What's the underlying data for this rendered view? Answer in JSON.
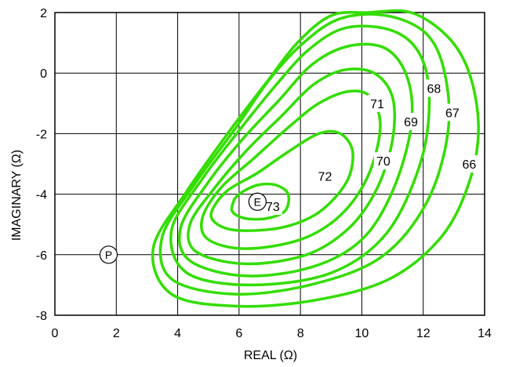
{
  "chart_data": {
    "type": "contour",
    "xlabel": "REAL (Ω)",
    "ylabel": "IMAGINARY (Ω)",
    "xlim": [
      0,
      14
    ],
    "ylim": [
      -8,
      2
    ],
    "x_ticks": [
      "0",
      "2",
      "4",
      "6",
      "8",
      "10",
      "12",
      "14"
    ],
    "y_ticks": [
      "2",
      "0",
      "-2",
      "-4",
      "-6",
      "-8"
    ],
    "grid": true,
    "line_color": "#33dd00",
    "contours": [
      {
        "label": "73",
        "label_at": [
          7.1,
          -4.4
        ],
        "points": [
          [
            5.8,
            -4.3
          ],
          [
            6.0,
            -4.0
          ],
          [
            6.6,
            -3.7
          ],
          [
            7.2,
            -3.7
          ],
          [
            7.6,
            -4.0
          ],
          [
            7.5,
            -4.55
          ],
          [
            6.9,
            -4.8
          ],
          [
            6.2,
            -4.8
          ],
          [
            5.8,
            -4.6
          ],
          [
            5.8,
            -4.3
          ]
        ]
      },
      {
        "label": "72",
        "label_at": [
          8.8,
          -3.4
        ],
        "points": [
          [
            5.1,
            -4.6
          ],
          [
            5.6,
            -3.9
          ],
          [
            6.6,
            -3.3
          ],
          [
            7.6,
            -2.6
          ],
          [
            8.6,
            -2.0
          ],
          [
            9.3,
            -2.0
          ],
          [
            9.7,
            -2.6
          ],
          [
            9.5,
            -3.6
          ],
          [
            8.6,
            -4.6
          ],
          [
            7.4,
            -5.1
          ],
          [
            6.0,
            -5.2
          ],
          [
            5.3,
            -5.0
          ],
          [
            5.1,
            -4.6
          ]
        ]
      },
      {
        "label": "71",
        "label_at": [
          10.5,
          -1.0
        ],
        "points": [
          [
            4.8,
            -4.8
          ],
          [
            5.4,
            -3.8
          ],
          [
            6.5,
            -2.8
          ],
          [
            7.6,
            -1.8
          ],
          [
            8.6,
            -1.0
          ],
          [
            9.6,
            -0.6
          ],
          [
            10.3,
            -0.8
          ],
          [
            10.6,
            -1.8
          ],
          [
            10.2,
            -3.4
          ],
          [
            9.3,
            -4.7
          ],
          [
            8.0,
            -5.5
          ],
          [
            6.2,
            -5.8
          ],
          [
            5.0,
            -5.5
          ],
          [
            4.8,
            -4.8
          ]
        ]
      },
      {
        "label": "70",
        "label_at": [
          10.7,
          -2.9
        ],
        "points": [
          [
            4.4,
            -5.0
          ],
          [
            5.2,
            -3.8
          ],
          [
            6.3,
            -2.5
          ],
          [
            7.4,
            -1.4
          ],
          [
            8.4,
            -0.4
          ],
          [
            9.4,
            0.1
          ],
          [
            10.4,
            0.0
          ],
          [
            11.0,
            -0.8
          ],
          [
            11.0,
            -2.2
          ],
          [
            10.5,
            -3.8
          ],
          [
            9.6,
            -5.1
          ],
          [
            8.2,
            -6.0
          ],
          [
            6.2,
            -6.3
          ],
          [
            4.6,
            -5.9
          ],
          [
            4.4,
            -5.0
          ]
        ]
      },
      {
        "label": "69",
        "label_at": [
          11.6,
          -1.6
        ],
        "points": [
          [
            4.1,
            -5.1
          ],
          [
            5.0,
            -3.6
          ],
          [
            6.1,
            -2.2
          ],
          [
            7.3,
            -0.9
          ],
          [
            8.4,
            0.3
          ],
          [
            9.6,
            0.9
          ],
          [
            10.8,
            0.8
          ],
          [
            11.5,
            -0.2
          ],
          [
            11.6,
            -1.8
          ],
          [
            11.0,
            -3.9
          ],
          [
            10.0,
            -5.5
          ],
          [
            8.4,
            -6.4
          ],
          [
            6.2,
            -6.7
          ],
          [
            4.4,
            -6.2
          ],
          [
            4.1,
            -5.1
          ]
        ]
      },
      {
        "label": "68",
        "label_at": [
          12.35,
          -0.5
        ],
        "points": [
          [
            3.8,
            -5.2
          ],
          [
            4.8,
            -3.5
          ],
          [
            6.0,
            -1.9
          ],
          [
            7.2,
            -0.4
          ],
          [
            8.3,
            0.8
          ],
          [
            9.5,
            1.5
          ],
          [
            11.0,
            1.4
          ],
          [
            11.9,
            0.6
          ],
          [
            12.2,
            -0.9
          ],
          [
            11.9,
            -3.0
          ],
          [
            10.8,
            -5.3
          ],
          [
            9.0,
            -6.6
          ],
          [
            6.4,
            -7.0
          ],
          [
            4.3,
            -6.6
          ],
          [
            3.8,
            -5.2
          ]
        ]
      },
      {
        "label": "67",
        "label_at": [
          12.95,
          -1.3
        ],
        "points": [
          [
            3.5,
            -5.4
          ],
          [
            4.6,
            -3.6
          ],
          [
            5.9,
            -1.8
          ],
          [
            7.0,
            -0.2
          ],
          [
            8.1,
            1.0
          ],
          [
            9.3,
            1.8
          ],
          [
            10.8,
            1.9
          ],
          [
            12.1,
            1.3
          ],
          [
            12.7,
            0.0
          ],
          [
            12.8,
            -2.0
          ],
          [
            12.1,
            -4.3
          ],
          [
            10.6,
            -6.1
          ],
          [
            8.3,
            -7.0
          ],
          [
            5.8,
            -7.3
          ],
          [
            3.8,
            -6.8
          ],
          [
            3.5,
            -5.4
          ]
        ]
      },
      {
        "label": "66",
        "label_at": [
          13.5,
          -3.0
        ],
        "points": [
          [
            3.2,
            -5.8
          ],
          [
            4.3,
            -3.9
          ],
          [
            5.7,
            -1.9
          ],
          [
            6.9,
            -0.3
          ],
          [
            7.9,
            1.0
          ],
          [
            9.0,
            1.9
          ],
          [
            10.2,
            2.0
          ],
          [
            11.6,
            2.0
          ],
          [
            12.8,
            1.2
          ],
          [
            13.5,
            0.0
          ],
          [
            13.8,
            -1.8
          ],
          [
            13.5,
            -3.6
          ],
          [
            12.6,
            -5.4
          ],
          [
            10.9,
            -6.8
          ],
          [
            8.5,
            -7.5
          ],
          [
            5.9,
            -7.7
          ],
          [
            3.8,
            -7.3
          ],
          [
            3.2,
            -5.8
          ]
        ]
      }
    ],
    "points": [
      {
        "label": "P",
        "x": 1.75,
        "y": -6.0
      },
      {
        "label": "E",
        "x": 6.6,
        "y": -4.25
      }
    ]
  }
}
